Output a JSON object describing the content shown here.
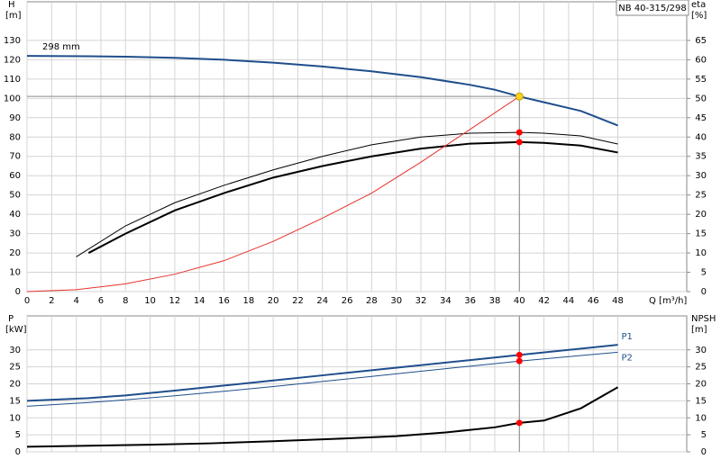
{
  "chart_data": [
    {
      "type": "line",
      "title": "NB 40-315/298",
      "ylabel": "H",
      "yunit": "[m]",
      "y2label": "eta",
      "y2unit": "[%]",
      "xlabel": "Q [m³/h]",
      "xlim": [
        0,
        53.6
      ],
      "xticks": [
        0,
        2,
        4,
        6,
        8,
        10,
        12,
        14,
        16,
        18,
        20,
        22,
        24,
        26,
        28,
        30,
        32,
        34,
        36,
        38,
        40,
        42,
        44,
        46,
        48
      ],
      "ylim": [
        0,
        150
      ],
      "yticks": [
        0,
        10,
        20,
        30,
        40,
        50,
        60,
        70,
        80,
        90,
        100,
        110,
        120,
        130
      ],
      "y2lim": [
        0,
        75
      ],
      "y2ticks": [
        0,
        5,
        10,
        15,
        20,
        25,
        30,
        35,
        40,
        45,
        50,
        55,
        60,
        65
      ],
      "grid": true,
      "operating_point": [
        40,
        101
      ],
      "series": [
        {
          "name": "298 mm",
          "color": "#1f4e8c",
          "line_width": 2,
          "x": [
            0,
            5,
            8,
            12,
            16,
            20,
            24,
            28,
            32,
            36,
            38,
            40,
            42,
            45,
            48
          ],
          "values": [
            122,
            121.8,
            121.6,
            121,
            120,
            118.5,
            116.5,
            114,
            111,
            107,
            104.5,
            101,
            98,
            93.5,
            86
          ]
        },
        {
          "color": "#000000",
          "line_width": 1,
          "axis": "y2",
          "x": [
            4,
            8,
            12,
            16,
            20,
            24,
            28,
            32,
            36,
            40,
            42,
            45,
            48
          ],
          "values": [
            9,
            17,
            23,
            27.5,
            31.5,
            35,
            38,
            40,
            41,
            41.2,
            41,
            40.3,
            38.2
          ]
        },
        {
          "color": "#000000",
          "line_width": 2,
          "axis": "y2",
          "x": [
            5,
            8,
            12,
            16,
            20,
            24,
            28,
            32,
            36,
            40,
            42,
            45,
            48
          ],
          "values": [
            10,
            15,
            21,
            25.5,
            29.5,
            32.5,
            35,
            37,
            38.3,
            38.7,
            38.5,
            37.8,
            36
          ]
        },
        {
          "color": "#e8302a",
          "line_width": 1,
          "x": [
            0,
            4,
            8,
            12,
            16,
            20,
            24,
            28,
            32,
            36,
            40
          ],
          "values": [
            0,
            1,
            4,
            9,
            16,
            26,
            38,
            51,
            67,
            84,
            101
          ]
        }
      ]
    },
    {
      "type": "line",
      "ylabel": "P",
      "yunit": "[kW]",
      "y2label": "NPSH",
      "y2unit": "[m]",
      "xlim": [
        0,
        53.6
      ],
      "xticks": [
        0,
        2,
        4,
        6,
        8,
        10,
        12,
        14,
        16,
        18,
        20,
        22,
        24,
        26,
        28,
        30,
        32,
        34,
        36,
        38,
        40,
        42,
        44,
        46,
        48
      ],
      "ylim": [
        0,
        40
      ],
      "yticks": [
        0,
        5,
        10,
        15,
        20,
        25,
        30
      ],
      "y2lim": [
        0,
        40
      ],
      "y2ticks": [
        0,
        5,
        10,
        15,
        20,
        25,
        30
      ],
      "grid": true,
      "operating_point": [
        40
      ],
      "series": [
        {
          "name": "P1",
          "color": "#1f4e8c",
          "line_width": 2,
          "x": [
            0,
            5,
            8,
            12,
            16,
            20,
            24,
            28,
            32,
            36,
            40,
            44,
            48
          ],
          "values": [
            15,
            15.8,
            16.6,
            18,
            19.5,
            21,
            22.5,
            24,
            25.5,
            27,
            28.5,
            30,
            31.5
          ]
        },
        {
          "name": "P2",
          "color": "#1f4e8c",
          "line_width": 1,
          "x": [
            0,
            5,
            8,
            12,
            16,
            20,
            24,
            28,
            32,
            36,
            40,
            44,
            48
          ],
          "values": [
            13.4,
            14.5,
            15.3,
            16.5,
            17.8,
            19.2,
            20.7,
            22.2,
            23.7,
            25.2,
            26.7,
            28,
            29.3
          ]
        },
        {
          "color": "#000000",
          "line_width": 2,
          "axis": "y2",
          "x": [
            0,
            5,
            10,
            15,
            20,
            25,
            30,
            34,
            38,
            40,
            42,
            45,
            48
          ],
          "values": [
            1.5,
            1.8,
            2.1,
            2.5,
            3.1,
            3.8,
            4.6,
            5.7,
            7.2,
            8.5,
            9.2,
            12.8,
            19
          ]
        }
      ]
    }
  ]
}
